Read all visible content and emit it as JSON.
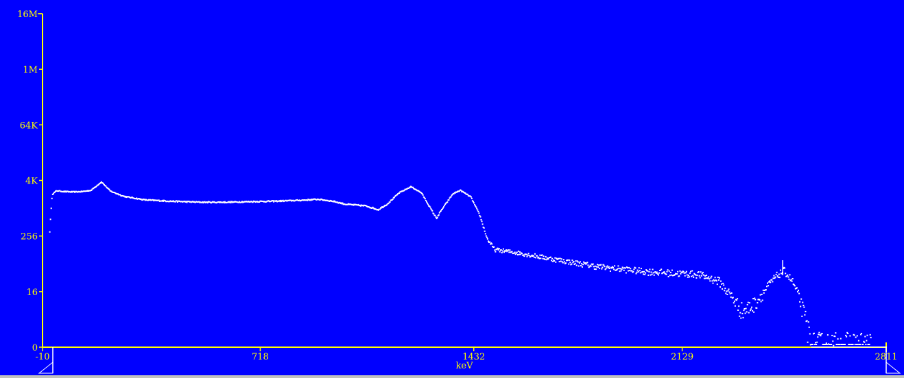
{
  "chart_data": {
    "type": "scatter",
    "title": "",
    "xlabel": "keV",
    "ylabel": "",
    "y_scale": "log",
    "xlim": [
      -10,
      2811
    ],
    "ylim": [
      0,
      16777216
    ],
    "x_ticks": [
      "-10",
      "718",
      "1432",
      "2129",
      "2811"
    ],
    "y_ticks": [
      "0",
      "16",
      "256",
      "4K",
      "64K",
      "1M",
      "16M"
    ],
    "grid": false,
    "legend": "none",
    "colors": {
      "background": "#0000ff",
      "axis": "#ffff00",
      "points": "#ffffff"
    },
    "marker_keV": 2465,
    "profile": [
      [
        12,
        330
      ],
      [
        20,
        2050
      ],
      [
        35,
        2450
      ],
      [
        60,
        2350
      ],
      [
        90,
        2300
      ],
      [
        120,
        2350
      ],
      [
        150,
        2500
      ],
      [
        185,
        3800
      ],
      [
        215,
        2400
      ],
      [
        260,
        1850
      ],
      [
        330,
        1550
      ],
      [
        420,
        1450
      ],
      [
        520,
        1380
      ],
      [
        600,
        1380
      ],
      [
        680,
        1420
      ],
      [
        760,
        1450
      ],
      [
        850,
        1520
      ],
      [
        910,
        1600
      ],
      [
        960,
        1450
      ],
      [
        1000,
        1250
      ],
      [
        1070,
        1150
      ],
      [
        1110,
        950
      ],
      [
        1140,
        1250
      ],
      [
        1180,
        2200
      ],
      [
        1220,
        3000
      ],
      [
        1255,
        2200
      ],
      [
        1290,
        900
      ],
      [
        1305,
        620
      ],
      [
        1325,
        1000
      ],
      [
        1360,
        2100
      ],
      [
        1385,
        2500
      ],
      [
        1420,
        1800
      ],
      [
        1450,
        720
      ],
      [
        1475,
        220
      ],
      [
        1500,
        130
      ],
      [
        1580,
        110
      ],
      [
        1700,
        80
      ],
      [
        1850,
        55
      ],
      [
        2000,
        44
      ],
      [
        2100,
        40
      ],
      [
        2180,
        38
      ],
      [
        2250,
        27
      ],
      [
        2290,
        13
      ],
      [
        2330,
        6
      ],
      [
        2370,
        9
      ],
      [
        2400,
        16
      ],
      [
        2440,
        34
      ],
      [
        2468,
        46
      ],
      [
        2495,
        27
      ],
      [
        2520,
        11
      ],
      [
        2545,
        3
      ],
      [
        2560,
        1
      ],
      [
        2600,
        1
      ],
      [
        2750,
        1
      ]
    ]
  }
}
